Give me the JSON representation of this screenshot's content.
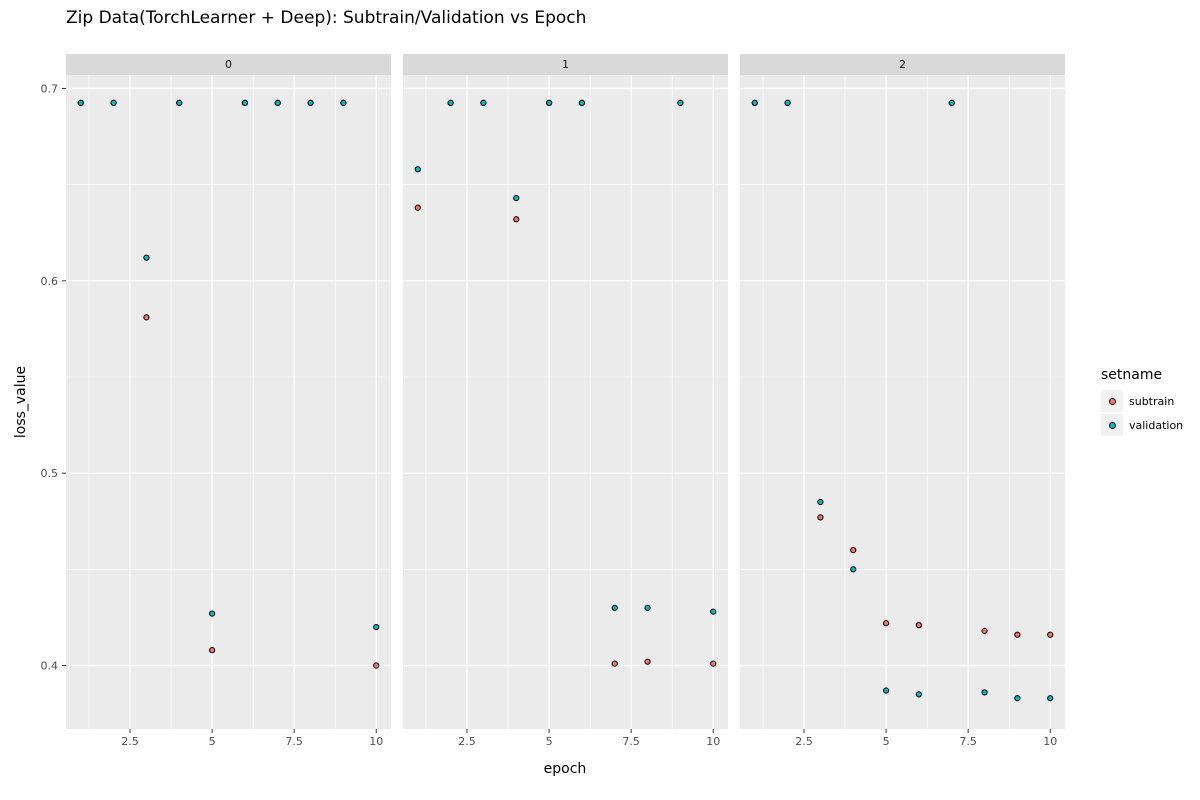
{
  "chart_data": {
    "type": "scatter",
    "title": "Zip Data(TorchLearner + Deep): Subtrain/Validation vs Epoch",
    "xlabel": "epoch",
    "ylabel": "loss_value",
    "xlim": [
      0.55,
      10.45
    ],
    "ylim": [
      0.367,
      0.707
    ],
    "x_ticks": [
      2.5,
      5,
      7.5,
      10
    ],
    "x_tick_labels": [
      "2.5",
      "5",
      "7.5",
      "10"
    ],
    "y_ticks": [
      0.4,
      0.5,
      0.6,
      0.7
    ],
    "y_tick_labels": [
      "0.4",
      "0.5",
      "0.6",
      "0.7"
    ],
    "grid": true,
    "legend_title": "setname",
    "legend_position": "right",
    "series_colors": {
      "subtrain": "#f8766d",
      "validation": "#00bfc4"
    },
    "facets": [
      {
        "label": "0",
        "series": [
          {
            "name": "subtrain",
            "x": [
              1,
              2,
              3,
              4,
              5,
              6,
              7,
              8,
              9,
              10
            ],
            "y": [
              0.6925,
              0.6925,
              0.581,
              0.6925,
              0.408,
              0.6925,
              0.6925,
              0.6925,
              0.6925,
              0.4
            ]
          },
          {
            "name": "validation",
            "x": [
              1,
              2,
              3,
              4,
              5,
              6,
              7,
              8,
              9,
              10
            ],
            "y": [
              0.6925,
              0.6925,
              0.612,
              0.6925,
              0.427,
              0.6925,
              0.6925,
              0.6925,
              0.6925,
              0.42
            ]
          }
        ]
      },
      {
        "label": "1",
        "series": [
          {
            "name": "subtrain",
            "x": [
              1,
              2,
              3,
              4,
              5,
              6,
              7,
              8,
              9,
              10
            ],
            "y": [
              0.638,
              0.6925,
              0.6925,
              0.632,
              0.6925,
              0.6925,
              0.401,
              0.402,
              0.6925,
              0.401
            ]
          },
          {
            "name": "validation",
            "x": [
              1,
              2,
              3,
              4,
              5,
              6,
              7,
              8,
              9,
              10
            ],
            "y": [
              0.658,
              0.6925,
              0.6925,
              0.643,
              0.6925,
              0.6925,
              0.43,
              0.43,
              0.6925,
              0.428
            ]
          }
        ]
      },
      {
        "label": "2",
        "series": [
          {
            "name": "subtrain",
            "x": [
              1,
              2,
              3,
              4,
              5,
              6,
              7,
              8,
              9,
              10
            ],
            "y": [
              0.6925,
              0.6925,
              0.477,
              0.46,
              0.422,
              0.421,
              0.6925,
              0.418,
              0.416,
              0.416
            ]
          },
          {
            "name": "validation",
            "x": [
              1,
              2,
              3,
              4,
              5,
              6,
              7,
              8,
              9,
              10
            ],
            "y": [
              0.6925,
              0.6925,
              0.485,
              0.45,
              0.387,
              0.385,
              0.6925,
              0.386,
              0.383,
              0.383
            ]
          }
        ]
      }
    ]
  }
}
